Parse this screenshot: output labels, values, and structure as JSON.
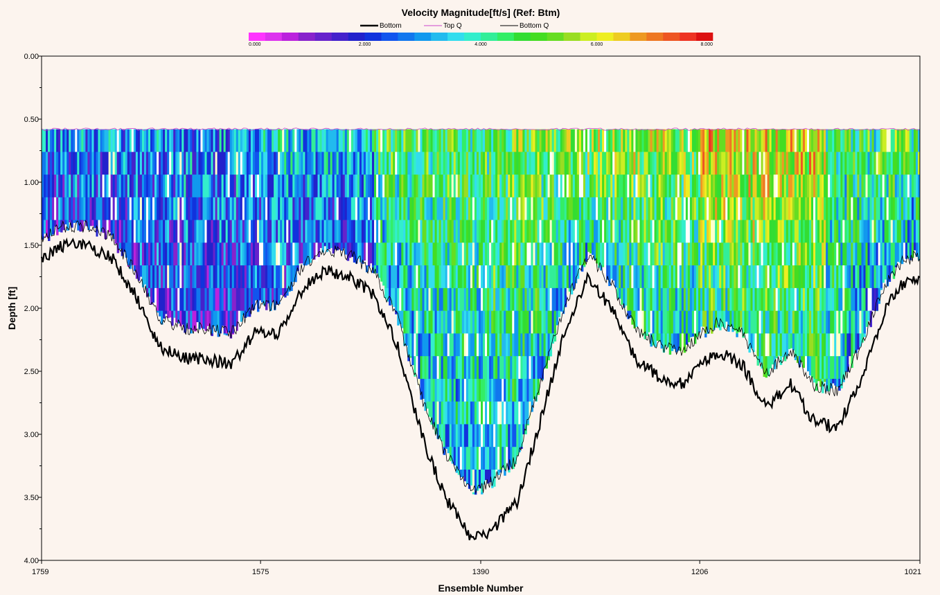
{
  "chart_data": {
    "type": "heatmap",
    "title": "Velocity Magnitude[ft/s] (Ref: Btm)",
    "xlabel": "Ensemble Number",
    "ylabel": "Depth [ft]",
    "x_ticks": [
      1759,
      1575,
      1390,
      1206,
      1021
    ],
    "y_ticks": [
      "0.00",
      "0.50",
      "1.00",
      "1.50",
      "2.00",
      "2.50",
      "3.00",
      "3.50",
      "4.00"
    ],
    "xlim": [
      1759,
      1021
    ],
    "ylim": [
      0,
      4
    ],
    "colorbar": {
      "min": 0,
      "max": 8,
      "tick_labels": [
        "0.000",
        "2.000",
        "4.000",
        "6.000",
        "8.000"
      ],
      "tick_values": [
        0,
        2,
        4,
        6,
        8
      ],
      "colors": [
        "#ff33ff",
        "#dd33ee",
        "#bb22dd",
        "#8822cc",
        "#6622cc",
        "#4422cc",
        "#2222cc",
        "#1133dd",
        "#1155ee",
        "#1177ee",
        "#1199ee",
        "#22bbee",
        "#33ddee",
        "#33eecc",
        "#33ee99",
        "#33ee66",
        "#33dd33",
        "#44dd22",
        "#66dd22",
        "#99dd22",
        "#ccee22",
        "#eeee22",
        "#eecc22",
        "#ee9922",
        "#ee7722",
        "#ee5522",
        "#ee3322",
        "#dd1111"
      ]
    },
    "legend": {
      "placement": "top-center",
      "entries": [
        {
          "name": "Bottom",
          "color": "#000000",
          "width": 2.5
        },
        {
          "name": "Top Q",
          "color": "#cc44cc",
          "width": 1
        },
        {
          "name": "Bottom Q",
          "color": "#000000",
          "width": 1
        }
      ]
    },
    "top_depth": 0.58,
    "bottom_profile": {
      "ensembles": [
        1759,
        1740,
        1720,
        1700,
        1680,
        1660,
        1640,
        1620,
        1600,
        1580,
        1560,
        1540,
        1520,
        1500,
        1480,
        1460,
        1440,
        1420,
        1400,
        1390,
        1380,
        1360,
        1340,
        1320,
        1300,
        1280,
        1260,
        1240,
        1220,
        1206,
        1190,
        1170,
        1150,
        1130,
        1110,
        1090,
        1070,
        1050,
        1035,
        1021
      ],
      "depths": [
        1.6,
        1.5,
        1.5,
        1.6,
        1.9,
        2.3,
        2.4,
        2.4,
        2.45,
        2.2,
        2.2,
        1.85,
        1.7,
        1.75,
        1.9,
        2.3,
        3.0,
        3.5,
        3.8,
        3.82,
        3.75,
        3.55,
        2.9,
        2.2,
        1.75,
        2.0,
        2.4,
        2.55,
        2.6,
        2.45,
        2.35,
        2.45,
        2.8,
        2.6,
        2.9,
        2.95,
        2.55,
        2.0,
        1.8,
        1.75
      ]
    },
    "velocity_bands": [
      {
        "from": 1759,
        "to": 1575,
        "mean": 2.9,
        "spread": 1.4
      },
      {
        "from": 1575,
        "to": 1480,
        "mean": 3.3,
        "spread": 1.3
      },
      {
        "from": 1480,
        "to": 1380,
        "mean": 4.7,
        "spread": 1.3
      },
      {
        "from": 1380,
        "to": 1300,
        "mean": 5.1,
        "spread": 1.4
      },
      {
        "from": 1300,
        "to": 1206,
        "mean": 5.4,
        "spread": 1.4
      },
      {
        "from": 1206,
        "to": 1100,
        "mean": 6.1,
        "spread": 1.4
      },
      {
        "from": 1100,
        "to": 1021,
        "mean": 4.6,
        "spread": 1.5
      }
    ]
  }
}
